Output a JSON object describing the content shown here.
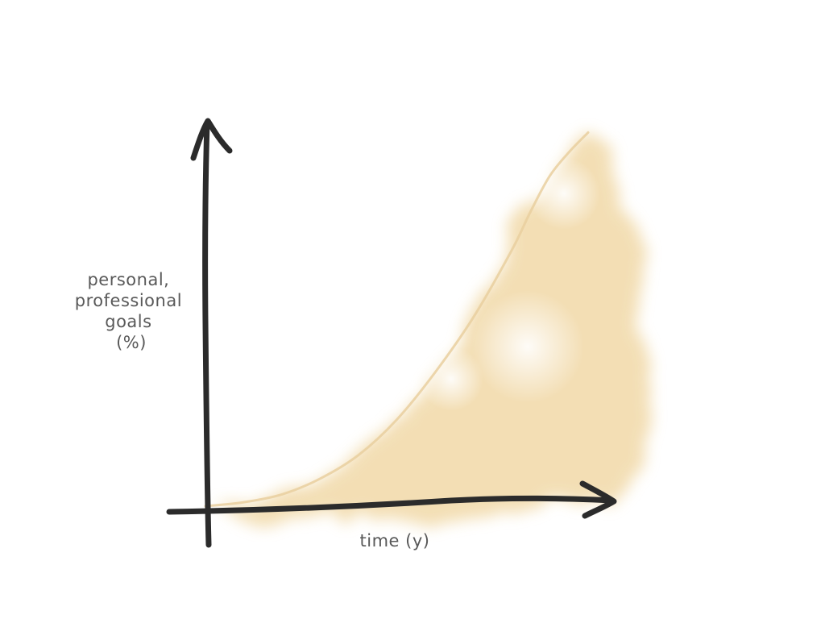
{
  "chart_data": {
    "type": "area",
    "xlabel": "time (y)",
    "ylabel_lines": [
      "personal,",
      "professional",
      "goals",
      "(%)"
    ],
    "grid": false,
    "legend": "none",
    "xlim": [
      0,
      100
    ],
    "ylim": [
      0,
      100
    ],
    "series": [
      {
        "x": [
          0,
          10,
          20,
          30,
          40,
          50,
          60,
          70,
          80,
          85,
          90,
          95,
          100
        ],
        "values": [
          0,
          1,
          3,
          7,
          13,
          22,
          34,
          48,
          65,
          75,
          84,
          90,
          95
        ]
      }
    ],
    "colors": {
      "axis": "#2b2b2b",
      "fill": "#f1d9a8",
      "line": "#e9cf9f",
      "label": "#595959"
    }
  }
}
